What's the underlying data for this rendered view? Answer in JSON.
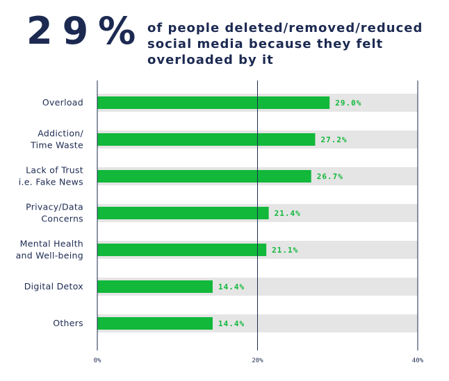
{
  "headline": {
    "stat": "29%",
    "text": "of people deleted/removed/reduced\nsocial media  because they felt\noverloaded by it"
  },
  "colors": {
    "bar": "#11b83a",
    "track": "#e5e5e5",
    "text": "#1c2a52",
    "axis": "#1c2a52"
  },
  "chart_data": {
    "type": "bar",
    "orientation": "horizontal",
    "categories": [
      [
        "Overload"
      ],
      [
        "Addiction/",
        "Time Waste"
      ],
      [
        "Lack of Trust",
        "i.e. Fake News"
      ],
      [
        "Privacy/Data",
        "Concerns"
      ],
      [
        "Mental Health",
        "and Well-being"
      ],
      [
        "Digital Detox"
      ],
      [
        "Others"
      ]
    ],
    "values": [
      29.0,
      27.2,
      26.7,
      21.4,
      21.1,
      14.4,
      14.4
    ],
    "value_labels": [
      "29.0%",
      "27.2%",
      "26.7%",
      "21.4%",
      "21.1%",
      "14.4%",
      "14.4%"
    ],
    "xlim": [
      0,
      40
    ],
    "ticks": [
      0,
      20,
      40
    ],
    "tick_labels": [
      "0%",
      "20%",
      "40%"
    ],
    "grid": true
  }
}
